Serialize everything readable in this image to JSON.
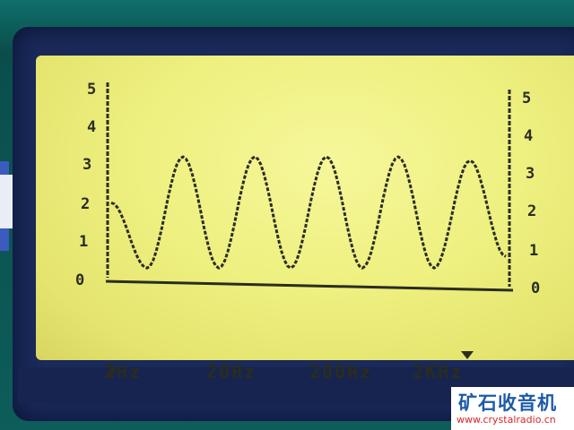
{
  "display": {
    "y_ticks_left": [
      "5",
      "4",
      "3",
      "2",
      "1",
      "0"
    ],
    "y_ticks_right": [
      "5",
      "4",
      "3",
      "2",
      "1",
      "0"
    ],
    "frequency_labels": [
      "2Hz",
      "20Hz",
      "200Hz",
      "2KHz"
    ],
    "cursor_icon": "triangle-right-icon",
    "marker_icon": "triangle-down-icon"
  },
  "chart_data": {
    "type": "line",
    "ylim": [
      0,
      5
    ],
    "yticks": [
      "0",
      "1",
      "2",
      "3",
      "4",
      "5"
    ],
    "xticks": [
      "2Hz",
      "20Hz",
      "200Hz",
      "2KHz"
    ],
    "series": [
      {
        "values": [
          2.0,
          0.3,
          3.2,
          0.3,
          3.2,
          0.3,
          3.2,
          0.3,
          3.2,
          0.3,
          3.1,
          0.6
        ]
      }
    ]
  },
  "watermark": {
    "title": "矿石收音机",
    "url": "www.crystalradio.cn"
  },
  "colors": {
    "lcd_background": "#eef080",
    "lcd_ink": "#2a2d1e",
    "bezel": "#1a2a5a",
    "watermark_title": "#1e5aa8",
    "watermark_url": "#d4262a"
  }
}
